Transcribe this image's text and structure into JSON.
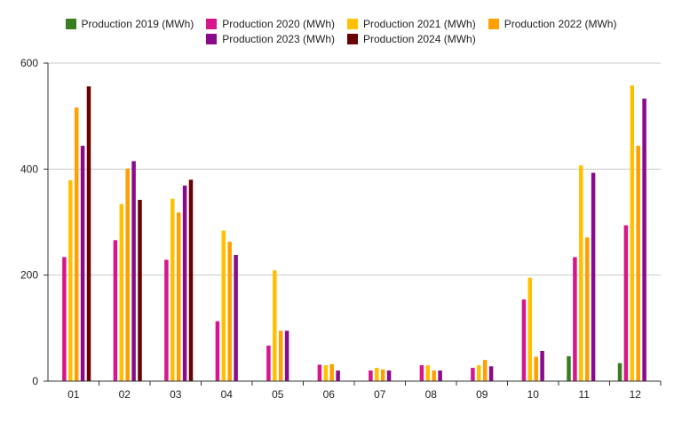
{
  "chart_data": {
    "type": "bar",
    "categories": [
      "01",
      "02",
      "03",
      "04",
      "05",
      "06",
      "07",
      "08",
      "09",
      "10",
      "11",
      "12"
    ],
    "ylim": [
      0,
      600
    ],
    "yticks": [
      0,
      200,
      400,
      600
    ],
    "grid": true,
    "legend_position": "top-center",
    "series": [
      {
        "name": "Production 2019 (MWh)",
        "color": "#3a7d1e",
        "values": [
          null,
          null,
          null,
          null,
          null,
          null,
          null,
          null,
          null,
          null,
          47,
          34
        ]
      },
      {
        "name": "Production 2020 (MWh)",
        "color": "#d6168a",
        "values": [
          234,
          266,
          229,
          113,
          67,
          31,
          20,
          30,
          25,
          154,
          234,
          294
        ]
      },
      {
        "name": "Production 2021 (MWh)",
        "color": "#ffc000",
        "values": [
          379,
          334,
          344,
          284,
          209,
          30,
          25,
          30,
          30,
          195,
          407,
          558
        ]
      },
      {
        "name": "Production 2022 (MWh)",
        "color": "#ff9f00",
        "values": [
          516,
          401,
          318,
          263,
          95,
          32,
          22,
          20,
          40,
          46,
          271,
          444
        ]
      },
      {
        "name": "Production 2023 (MWh)",
        "color": "#8b0a8b",
        "values": [
          444,
          415,
          369,
          238,
          95,
          20,
          20,
          20,
          28,
          57,
          393,
          533
        ]
      },
      {
        "name": "Production 2024 (MWh)",
        "color": "#6b0000",
        "values": [
          556,
          342,
          380,
          null,
          null,
          null,
          null,
          null,
          null,
          null,
          null,
          null
        ]
      }
    ]
  }
}
